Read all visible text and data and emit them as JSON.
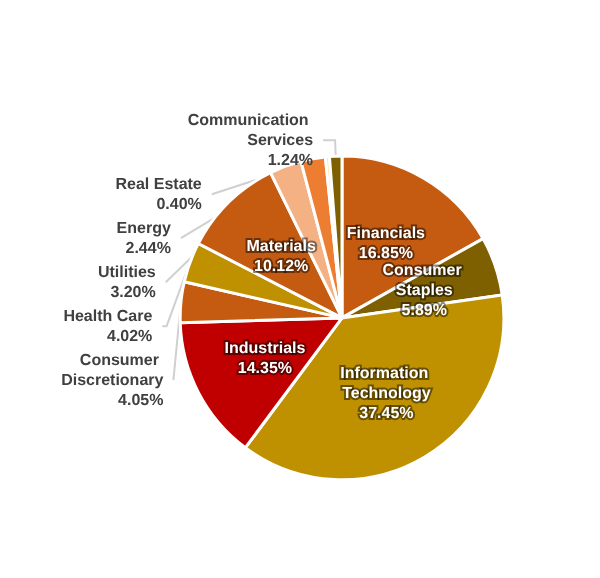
{
  "chart_data": {
    "type": "pie",
    "categories": [
      "Financials",
      "Consumer Staples",
      "Information Technology",
      "Industrials",
      "Consumer Discretionary",
      "Health Care",
      "Materials",
      "Utilities",
      "Energy",
      "Real Estate",
      "Communication Services"
    ],
    "values": [
      16.85,
      5.89,
      37.45,
      14.35,
      4.05,
      4.02,
      10.12,
      3.2,
      2.44,
      0.4,
      1.24
    ],
    "value_labels": [
      "16.85%",
      "5.89%",
      "37.45%",
      "14.35%",
      "4.05%",
      "4.02%",
      "10.12%",
      "3.20%",
      "2.44%",
      "0.40%",
      "1.24%"
    ],
    "colors": [
      "#c55a11",
      "#7f6000",
      "#bf9000",
      "#c00000",
      "#c55a11",
      "#bf9000",
      "#c55a11",
      "#f4b183",
      "#ed7d31",
      "#ffe699",
      "#7f6000"
    ]
  }
}
